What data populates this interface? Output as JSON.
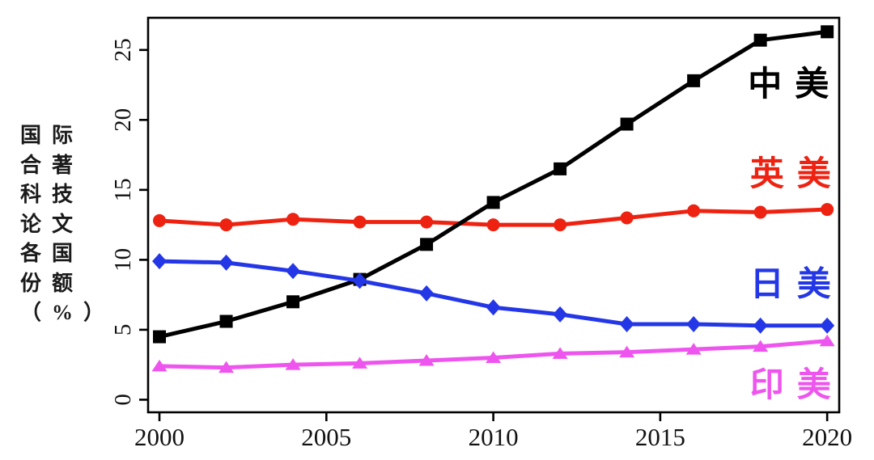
{
  "figure": {
    "background": "#ffffff",
    "axis_color": "#000000",
    "tick_label_color": "#111111"
  },
  "chart_data": {
    "type": "line",
    "title": "",
    "y_axis_title_lines": [
      "国际",
      "合著",
      "科技",
      "论文",
      "各国",
      "份额",
      "（%）"
    ],
    "x": [
      2000,
      2002,
      2004,
      2006,
      2008,
      2010,
      2012,
      2014,
      2016,
      2018,
      2020
    ],
    "xticks": {
      "values": [
        2000,
        2005,
        2010,
        2015,
        2020
      ],
      "labels": [
        "2000",
        "2005",
        "2010",
        "2015",
        "2020"
      ]
    },
    "yticks": {
      "values": [
        0,
        5,
        10,
        15,
        20,
        25
      ],
      "labels": [
        "0",
        "5",
        "10",
        "15",
        "20",
        "25"
      ]
    },
    "xlim": [
      1999.66,
      2020.36
    ],
    "ylim": [
      -0.9,
      27.3
    ],
    "grid": false,
    "legend_position": "inside-right-stacked",
    "series": [
      {
        "id": "china-us",
        "name": "中美",
        "color": "#000000",
        "marker": "square",
        "values": [
          4.5,
          5.6,
          7.0,
          8.6,
          11.1,
          14.1,
          16.5,
          19.7,
          22.8,
          25.7,
          26.3
        ],
        "label_anchor": {
          "x": 2018.84,
          "y": 22.5
        }
      },
      {
        "id": "uk-us",
        "name": "英美",
        "color": "#ee2211",
        "marker": "circle",
        "values": [
          12.8,
          12.5,
          12.9,
          12.7,
          12.7,
          12.5,
          12.5,
          13.0,
          13.5,
          13.4,
          13.6
        ],
        "label_anchor": {
          "x": 2018.9,
          "y": 16.1
        }
      },
      {
        "id": "japan-us",
        "name": "日美",
        "color": "#2437e6",
        "marker": "diamond",
        "values": [
          9.9,
          9.8,
          9.2,
          8.5,
          7.6,
          6.6,
          6.1,
          5.4,
          5.4,
          5.3,
          5.3
        ],
        "label_anchor": {
          "x": 2018.9,
          "y": 8.2
        }
      },
      {
        "id": "india-us",
        "name": "印美",
        "color": "#ee55ee",
        "marker": "triangle",
        "values": [
          2.4,
          2.3,
          2.5,
          2.6,
          2.8,
          3.0,
          3.3,
          3.4,
          3.6,
          3.8,
          4.2
        ],
        "label_anchor": {
          "x": 2018.9,
          "y": 1.0
        }
      }
    ]
  }
}
